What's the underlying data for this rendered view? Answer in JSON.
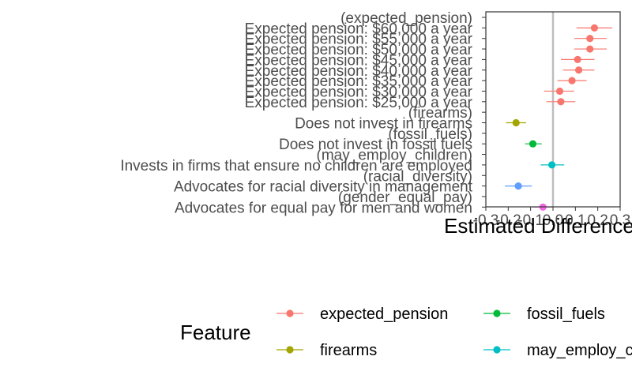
{
  "chart_data": {
    "type": "scatter",
    "xlabel": "Estimated Difference",
    "xlim": [
      -0.3,
      0.3
    ],
    "x_ticks": [
      -0.3,
      -0.2,
      -0.1,
      0.0,
      0.1,
      0.2,
      0.3
    ],
    "x_tick_labels": [
      "-0.3",
      "-0.2",
      "-0.1",
      "0.0",
      "0.1",
      "0.2",
      "0.3"
    ],
    "reference_line": 0,
    "legend_title": "Feature",
    "legend_position": "bottom",
    "series": [
      {
        "name": "expected_pension",
        "color": "#F8766D"
      },
      {
        "name": "firearms",
        "color": "#A3A500"
      },
      {
        "name": "fossil_fuels",
        "color": "#00BA38"
      },
      {
        "name": "may_employ_children",
        "color": "#00BFC4"
      },
      {
        "name": "racial_diversity",
        "color": "#619CFF"
      },
      {
        "name": "gender_equal_pay",
        "color": "#F564E3"
      }
    ],
    "rows": [
      {
        "label": "(expected_pension)",
        "feature": "expected_pension",
        "estimate": null
      },
      {
        "label": "Expected pension: $60,000 a year",
        "feature": "expected_pension",
        "estimate": 0.185,
        "low": 0.105,
        "high": 0.265
      },
      {
        "label": "Expected pension: $55,000 a year",
        "feature": "expected_pension",
        "estimate": 0.165,
        "low": 0.095,
        "high": 0.24
      },
      {
        "label": "Expected pension: $50,000 a year",
        "feature": "expected_pension",
        "estimate": 0.165,
        "low": 0.095,
        "high": 0.24
      },
      {
        "label": "Expected pension: $45,000 a year",
        "feature": "expected_pension",
        "estimate": 0.11,
        "low": 0.035,
        "high": 0.185
      },
      {
        "label": "Expected pension: $40,000 a year",
        "feature": "expected_pension",
        "estimate": 0.115,
        "low": 0.045,
        "high": 0.185
      },
      {
        "label": "Expected pension: $35,000 a year",
        "feature": "expected_pension",
        "estimate": 0.085,
        "low": 0.02,
        "high": 0.15
      },
      {
        "label": "Expected pension: $30,000 a year",
        "feature": "expected_pension",
        "estimate": 0.03,
        "low": -0.04,
        "high": 0.095
      },
      {
        "label": "Expected pension: $25,000 a year",
        "feature": "expected_pension",
        "estimate": 0.035,
        "low": -0.03,
        "high": 0.1
      },
      {
        "label": "(firearms)",
        "feature": "firearms",
        "estimate": null
      },
      {
        "label": "Does not invest in firearms",
        "feature": "firearms",
        "estimate": -0.165,
        "low": -0.21,
        "high": -0.12
      },
      {
        "label": "(fossil_fuels)",
        "feature": "fossil_fuels",
        "estimate": null
      },
      {
        "label": "Does not invest in fossil fuels",
        "feature": "fossil_fuels",
        "estimate": -0.09,
        "low": -0.125,
        "high": -0.05
      },
      {
        "label": "(may_employ_children)",
        "feature": "may_employ_children",
        "estimate": null
      },
      {
        "label": "Invests in firms that ensure no children are employed",
        "feature": "may_employ_children",
        "estimate": -0.005,
        "low": -0.055,
        "high": 0.05
      },
      {
        "label": "(racial_diversity)",
        "feature": "racial_diversity",
        "estimate": null
      },
      {
        "label": "Advocates for racial diversity in management",
        "feature": "racial_diversity",
        "estimate": -0.155,
        "low": -0.215,
        "high": -0.095
      },
      {
        "label": "(gender_equal_pay)",
        "feature": "gender_equal_pay",
        "estimate": null
      },
      {
        "label": "Advocates for equal pay for men and women",
        "feature": "gender_equal_pay",
        "estimate": -0.045,
        "low": -0.09,
        "high": 0.0
      }
    ]
  }
}
